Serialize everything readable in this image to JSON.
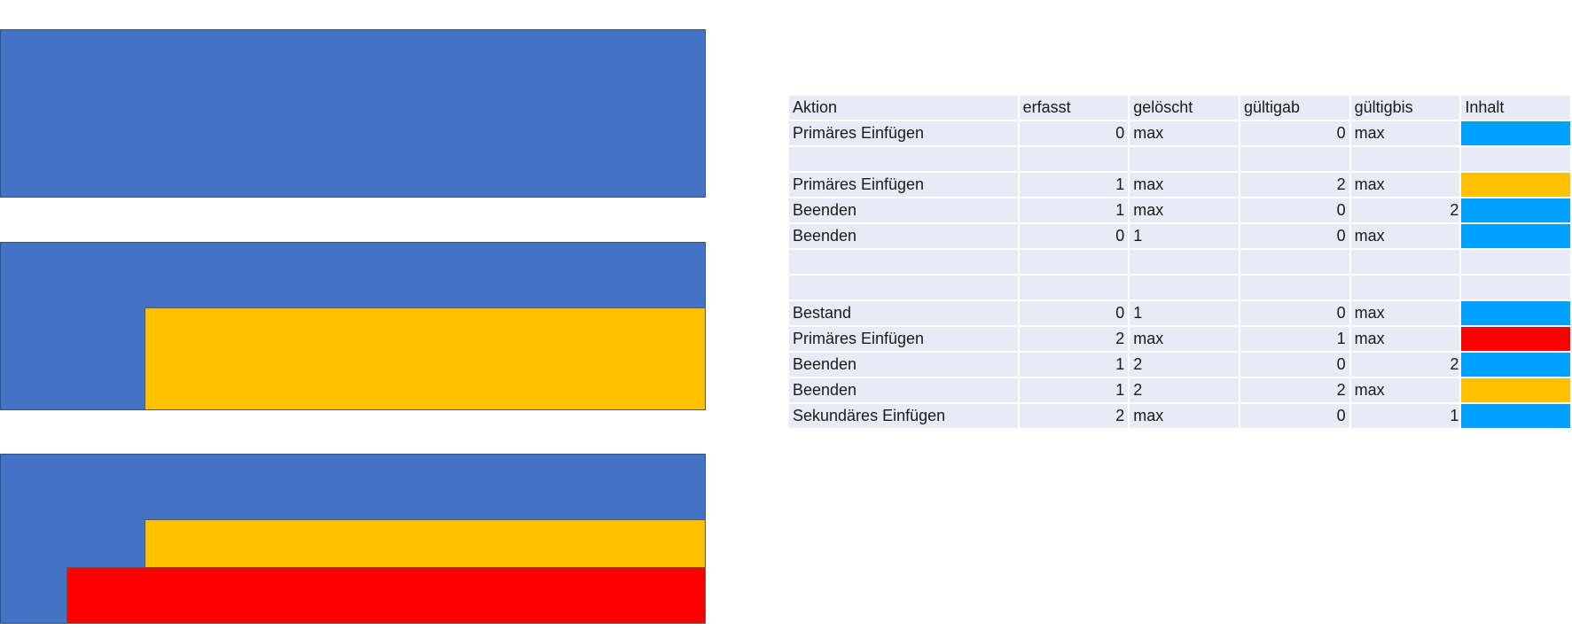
{
  "colors": {
    "blue_diagram": "#4472c4",
    "yellow": "#ffc000",
    "red": "#ff0000",
    "blue_swatch": "#00a0ff"
  },
  "table": {
    "headers": [
      "Aktion",
      "erfasst",
      "gelöscht",
      "gültigab",
      "gültigbis",
      "Inhalt"
    ],
    "rows": [
      {
        "aktion": "Primäres Einfügen",
        "erfasst": "0",
        "geloescht": "max",
        "gueltigab": "0",
        "gueltigbis": "max",
        "inhalt_num": "",
        "inhalt_color": "#00a0ff"
      },
      {
        "aktion": "",
        "erfasst": "",
        "geloescht": "",
        "gueltigab": "",
        "gueltigbis": "",
        "inhalt_num": "",
        "inhalt_color": ""
      },
      {
        "aktion": "Primäres Einfügen",
        "erfasst": "1",
        "geloescht": "max",
        "gueltigab": "2",
        "gueltigbis": "max",
        "inhalt_num": "",
        "inhalt_color": "#ffc000"
      },
      {
        "aktion": "Beenden",
        "erfasst": "1",
        "geloescht": "max",
        "gueltigab": "0",
        "gueltigbis": "",
        "inhalt_num": "2",
        "inhalt_color": "#00a0ff"
      },
      {
        "aktion": "Beenden",
        "erfasst": "0",
        "geloescht": "1",
        "gueltigab": "0",
        "gueltigbis": "max",
        "inhalt_num": "",
        "inhalt_color": "#00a0ff"
      },
      {
        "aktion": "",
        "erfasst": "",
        "geloescht": "",
        "gueltigab": "",
        "gueltigbis": "",
        "inhalt_num": "",
        "inhalt_color": ""
      },
      {
        "aktion": "",
        "erfasst": "",
        "geloescht": "",
        "gueltigab": "",
        "gueltigbis": "",
        "inhalt_num": "",
        "inhalt_color": ""
      },
      {
        "aktion": "Bestand",
        "erfasst": "0",
        "geloescht": "1",
        "gueltigab": "0",
        "gueltigbis": "max",
        "inhalt_num": "",
        "inhalt_color": "#00a0ff"
      },
      {
        "aktion": "Primäres Einfügen",
        "erfasst": "2",
        "geloescht": "max",
        "gueltigab": "1",
        "gueltigbis": "max",
        "inhalt_num": "",
        "inhalt_color": "#ff0000"
      },
      {
        "aktion": "Beenden",
        "erfasst": "1",
        "geloescht": "2",
        "gueltigab": "0",
        "gueltigbis": "",
        "inhalt_num": "2",
        "inhalt_color": "#00a0ff"
      },
      {
        "aktion": "Beenden",
        "erfasst": "1",
        "geloescht": "2",
        "gueltigab": "2",
        "gueltigbis": "max",
        "inhalt_num": "",
        "inhalt_color": "#ffc000"
      },
      {
        "aktion": "Sekundäres Einfügen",
        "erfasst": "2",
        "geloescht": "max",
        "gueltigab": "0",
        "gueltigbis": "",
        "inhalt_num": "1",
        "inhalt_color": "#00a0ff"
      }
    ]
  }
}
